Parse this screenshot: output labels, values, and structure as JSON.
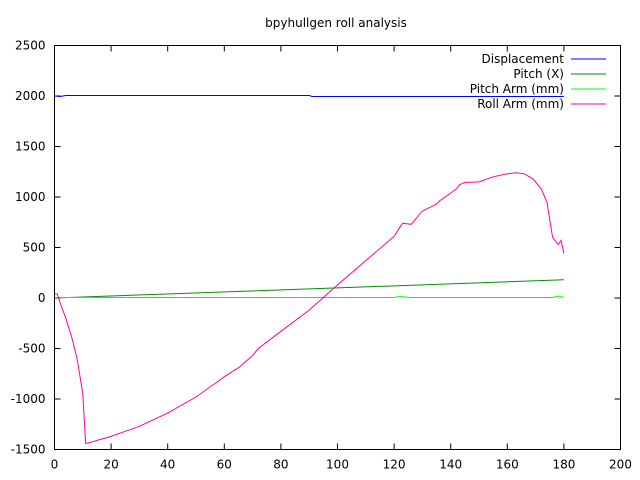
{
  "chart_data": {
    "type": "line",
    "title": "bpyhullgen roll analysis",
    "xlabel": "",
    "ylabel": "",
    "xlim": [
      0,
      200
    ],
    "ylim": [
      -1500,
      2500
    ],
    "xticks": [
      0,
      20,
      40,
      60,
      80,
      100,
      120,
      140,
      160,
      180,
      200
    ],
    "yticks": [
      -1500,
      -1000,
      -500,
      0,
      500,
      1000,
      1500,
      2000,
      2500
    ],
    "grid": false,
    "legend": "top-right",
    "series": [
      {
        "name": "Displacement",
        "color": "#0000ff",
        "x": [
          0,
          2,
          4,
          10,
          30,
          50,
          70,
          90,
          91,
          100,
          120,
          140,
          160,
          180
        ],
        "y": [
          2000,
          1995,
          2005,
          2005,
          2005,
          2005,
          2005,
          2005,
          1995,
          1995,
          1995,
          1995,
          1995,
          1995
        ]
      },
      {
        "name": "Pitch (X)",
        "color": "#009000",
        "x": [
          0,
          180
        ],
        "y": [
          0,
          180
        ]
      },
      {
        "name": "Pitch Arm (mm)",
        "color": "#00ff00",
        "x": [
          0,
          20,
          60,
          100,
          120,
          122,
          124,
          126,
          150,
          170,
          176,
          178,
          180
        ],
        "y": [
          5,
          5,
          5,
          5,
          5,
          15,
          10,
          5,
          5,
          5,
          5,
          20,
          5
        ]
      },
      {
        "name": "Roll Arm (mm)",
        "color": "#ff00a0",
        "x": [
          0,
          1,
          2,
          4,
          6,
          8,
          10,
          11,
          12,
          20,
          30,
          40,
          50,
          56,
          60,
          65,
          70,
          72,
          80,
          90,
          100,
          110,
          120,
          122,
          123,
          126,
          130,
          135,
          136,
          140,
          142,
          143,
          145,
          150,
          155,
          160,
          163,
          166,
          169,
          172,
          174,
          176,
          178,
          179,
          180
        ],
        "y": [
          40,
          40,
          -50,
          -200,
          -380,
          -600,
          -950,
          -1440,
          -1435,
          -1370,
          -1270,
          -1140,
          -980,
          -860,
          -780,
          -690,
          -570,
          -500,
          -330,
          -120,
          130,
          370,
          610,
          700,
          740,
          730,
          860,
          930,
          960,
          1040,
          1080,
          1120,
          1145,
          1150,
          1200,
          1230,
          1240,
          1230,
          1180,
          1080,
          950,
          600,
          530,
          570,
          440
        ]
      }
    ]
  }
}
